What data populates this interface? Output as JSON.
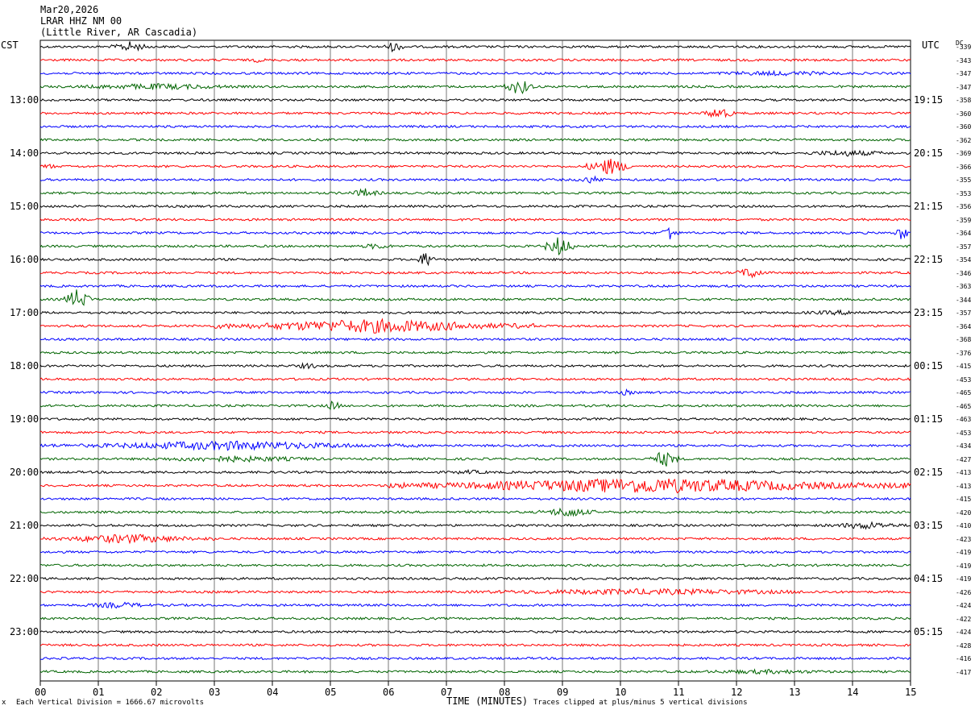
{
  "header": {
    "date": "Mar20,2026",
    "station": "LRAR HHZ NM 00",
    "location": "(Little River, AR Cascadia)"
  },
  "left_timezone": "CST",
  "right_timezone": "UTC",
  "dc_header": "DC",
  "left_hour_labels": [
    "13:00",
    "14:00",
    "15:00",
    "16:00",
    "17:00",
    "18:00",
    "19:00",
    "20:00",
    "21:00",
    "22:00",
    "23:00"
  ],
  "right_hour_labels": [
    "19:15",
    "20:15",
    "21:15",
    "22:15",
    "23:15",
    "00:15",
    "01:15",
    "02:15",
    "03:15",
    "04:15",
    "05:15"
  ],
  "footer": {
    "left_mark": "x",
    "scale_note": "Each Vertical Division = 1666.67 microvolts",
    "x_axis_title": "TIME (MINUTES)",
    "clip_note": "Traces clipped at plus/minus 5 vertical divisions"
  },
  "colors": {
    "trace_cycle": [
      "#000000",
      "#ff0000",
      "#0000ff",
      "#006400"
    ],
    "grid": "#000000",
    "background": "#ffffff"
  },
  "chart_data": {
    "type": "line",
    "title": "LRAR HHZ NM 00",
    "xlabel": "TIME (MINUTES)",
    "ylabel": "",
    "x_ticks": [
      "00",
      "01",
      "02",
      "03",
      "04",
      "05",
      "06",
      "07",
      "08",
      "09",
      "10",
      "11",
      "12",
      "13",
      "14",
      "15"
    ],
    "xlim": [
      0,
      15
    ],
    "grid": "vertical lines at each minute",
    "trace_count": 48,
    "dc_offsets": [
      -339,
      -343,
      -347,
      -347,
      -358,
      -360,
      -360,
      -362,
      -369,
      -366,
      -355,
      -353,
      -356,
      -359,
      -364,
      -357,
      -354,
      -346,
      -363,
      -344,
      -357,
      -364,
      -368,
      -376,
      -415,
      -453,
      -465,
      -465,
      -463,
      -453,
      -434,
      -427,
      -413,
      -413,
      -415,
      -420,
      -410,
      -423,
      -419,
      -419,
      -419,
      -426,
      -424,
      -422,
      -424,
      -428,
      -416,
      -417
    ],
    "event_bursts": [
      {
        "trace": 0,
        "minute_start": 1.2,
        "minute_end": 1.9,
        "amplitude": 7
      },
      {
        "trace": 0,
        "minute_start": 5.9,
        "minute_end": 6.3,
        "amplitude": 7
      },
      {
        "trace": 1,
        "minute_start": 3.5,
        "minute_end": 4.0,
        "amplitude": 3
      },
      {
        "trace": 2,
        "minute_start": 10.5,
        "minute_end": 15.0,
        "amplitude": 3
      },
      {
        "trace": 3,
        "minute_start": 0.0,
        "minute_end": 4.0,
        "amplitude": 4
      },
      {
        "trace": 3,
        "minute_start": 8.0,
        "minute_end": 8.5,
        "amplitude": 11
      },
      {
        "trace": 5,
        "minute_start": 11.4,
        "minute_end": 12.0,
        "amplitude": 8
      },
      {
        "trace": 8,
        "minute_start": 12.8,
        "minute_end": 15.0,
        "amplitude": 4
      },
      {
        "trace": 9,
        "minute_start": 9.4,
        "minute_end": 10.2,
        "amplitude": 11
      },
      {
        "trace": 9,
        "minute_start": 0.0,
        "minute_end": 0.3,
        "amplitude": 4
      },
      {
        "trace": 10,
        "minute_start": 9.2,
        "minute_end": 9.8,
        "amplitude": 5
      },
      {
        "trace": 11,
        "minute_start": 5.3,
        "minute_end": 5.9,
        "amplitude": 6
      },
      {
        "trace": 14,
        "minute_start": 10.7,
        "minute_end": 11.0,
        "amplitude": 11
      },
      {
        "trace": 14,
        "minute_start": 14.7,
        "minute_end": 15.0,
        "amplitude": 9
      },
      {
        "trace": 15,
        "minute_start": 8.7,
        "minute_end": 9.2,
        "amplitude": 13
      },
      {
        "trace": 15,
        "minute_start": 5.4,
        "minute_end": 6.2,
        "amplitude": 4
      },
      {
        "trace": 16,
        "minute_start": 6.5,
        "minute_end": 6.8,
        "amplitude": 11
      },
      {
        "trace": 17,
        "minute_start": 12.0,
        "minute_end": 12.5,
        "amplitude": 8
      },
      {
        "trace": 19,
        "minute_start": 0.4,
        "minute_end": 0.9,
        "amplitude": 14
      },
      {
        "trace": 20,
        "minute_start": 12.6,
        "minute_end": 15.0,
        "amplitude": 3
      },
      {
        "trace": 21,
        "minute_start": 3.0,
        "minute_end": 8.5,
        "amplitude": 9
      },
      {
        "trace": 24,
        "minute_start": 4.3,
        "minute_end": 4.9,
        "amplitude": 4
      },
      {
        "trace": 26,
        "minute_start": 9.9,
        "minute_end": 10.3,
        "amplitude": 4
      },
      {
        "trace": 27,
        "minute_start": 4.9,
        "minute_end": 5.2,
        "amplitude": 7
      },
      {
        "trace": 30,
        "minute_start": 0.0,
        "minute_end": 6.5,
        "amplitude": 6
      },
      {
        "trace": 31,
        "minute_start": 1.2,
        "minute_end": 5.5,
        "amplitude": 4
      },
      {
        "trace": 31,
        "minute_start": 10.5,
        "minute_end": 11.0,
        "amplitude": 11
      },
      {
        "trace": 32,
        "minute_start": 6.8,
        "minute_end": 8.0,
        "amplitude": 3
      },
      {
        "trace": 33,
        "minute_start": 6.0,
        "minute_end": 15.0,
        "amplitude": 10
      },
      {
        "trace": 35,
        "minute_start": 8.6,
        "minute_end": 9.6,
        "amplitude": 7
      },
      {
        "trace": 36,
        "minute_start": 13.5,
        "minute_end": 15.0,
        "amplitude": 5
      },
      {
        "trace": 37,
        "minute_start": 0.0,
        "minute_end": 3.0,
        "amplitude": 6
      },
      {
        "trace": 41,
        "minute_start": 6.0,
        "minute_end": 15.0,
        "amplitude": 4
      },
      {
        "trace": 42,
        "minute_start": 0.5,
        "minute_end": 2.2,
        "amplitude": 4
      },
      {
        "trace": 47,
        "minute_start": 10.5,
        "minute_end": 14.5,
        "amplitude": 3
      }
    ]
  }
}
